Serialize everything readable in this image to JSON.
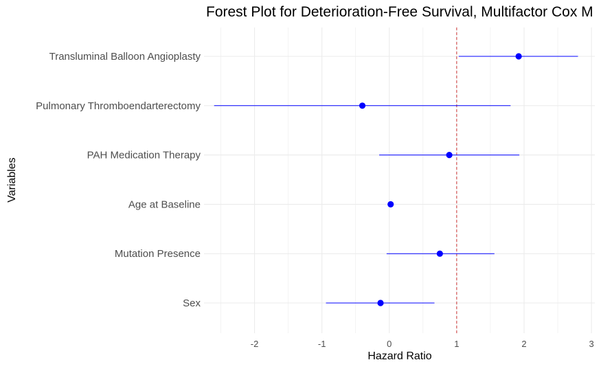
{
  "chart_data": {
    "type": "forest",
    "title": "Forest Plot for Deterioration-Free Survival, Multifactor Cox M",
    "xlabel": "Hazard Ratio",
    "ylabel": "Variables",
    "xlim": [
      -2.75,
      3.05
    ],
    "xticks": [
      -2,
      -1,
      0,
      1,
      2,
      3
    ],
    "reference_line": 1,
    "grid": true,
    "legend": "none",
    "colors": {
      "point": "#0000ff",
      "ci": "#0000ff",
      "reference": "#cc3333",
      "grid": "#ebebeb"
    },
    "rows": [
      {
        "label": "Transluminal Balloon Angioplasty",
        "estimate": 1.92,
        "lower": 1.03,
        "upper": 2.8
      },
      {
        "label": "Pulmonary Thromboendarterectomy",
        "estimate": -0.4,
        "lower": -2.6,
        "upper": 1.8
      },
      {
        "label": "PAH Medication Therapy",
        "estimate": 0.89,
        "lower": -0.15,
        "upper": 1.93
      },
      {
        "label": "Age at Baseline",
        "estimate": 0.02,
        "lower": 0.0,
        "upper": 0.04
      },
      {
        "label": "Mutation Presence",
        "estimate": 0.75,
        "lower": -0.04,
        "upper": 1.56
      },
      {
        "label": "Sex",
        "estimate": -0.13,
        "lower": -0.94,
        "upper": 0.67
      }
    ]
  }
}
